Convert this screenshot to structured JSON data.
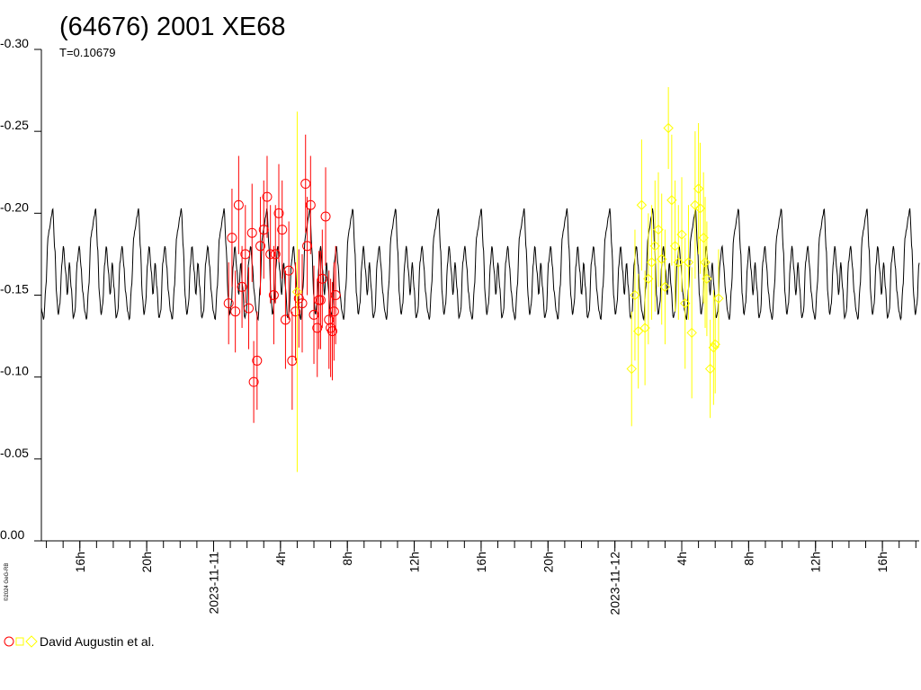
{
  "chart_data": {
    "type": "scatter",
    "title": "(64676) 2001 XE68",
    "subtitle": "T=0.10679",
    "credit": "©2024 GeG-RB",
    "y_reversed": true,
    "ylim": [
      0.0,
      -0.3
    ],
    "yticks": [
      "-0.30",
      "-0.25",
      "-0.20",
      "-0.15",
      "-0.10",
      "-0.05",
      "0.00"
    ],
    "ytick_values": [
      -0.3,
      -0.25,
      -0.2,
      -0.15,
      -0.1,
      -0.05,
      0.0
    ],
    "x_unit": "hours from 2023-11-10 00:00",
    "xlim": [
      13.7,
      66.2
    ],
    "xticks": [
      {
        "x": 16,
        "label": "16h"
      },
      {
        "x": 20,
        "label": "20h"
      },
      {
        "x": 24,
        "label": "2023-11-11"
      },
      {
        "x": 28,
        "label": "4h"
      },
      {
        "x": 32,
        "label": "8h"
      },
      {
        "x": 36,
        "label": "12h"
      },
      {
        "x": 40,
        "label": "16h"
      },
      {
        "x": 44,
        "label": "20h"
      },
      {
        "x": 48,
        "label": "2023-11-12"
      },
      {
        "x": 52,
        "label": "4h"
      },
      {
        "x": 56,
        "label": "8h"
      },
      {
        "x": 60,
        "label": "12h"
      },
      {
        "x": 64,
        "label": "16h"
      }
    ],
    "model": {
      "period_days": 0.10679,
      "mean": -0.168,
      "phase_points": [
        [
          0.0,
          -0.17
        ],
        [
          0.04,
          -0.155
        ],
        [
          0.09,
          -0.136
        ],
        [
          0.13,
          -0.14
        ],
        [
          0.18,
          -0.17
        ],
        [
          0.23,
          -0.18
        ],
        [
          0.27,
          -0.168
        ],
        [
          0.31,
          -0.152
        ],
        [
          0.36,
          -0.14
        ],
        [
          0.4,
          -0.135
        ],
        [
          0.45,
          -0.155
        ],
        [
          0.5,
          -0.185
        ],
        [
          0.53,
          -0.19
        ],
        [
          0.58,
          -0.198
        ],
        [
          0.61,
          -0.203
        ],
        [
          0.66,
          -0.178
        ],
        [
          0.7,
          -0.15
        ],
        [
          0.74,
          -0.138
        ],
        [
          0.78,
          -0.145
        ],
        [
          0.82,
          -0.168
        ],
        [
          0.86,
          -0.18
        ],
        [
          0.91,
          -0.165
        ],
        [
          0.95,
          -0.15
        ],
        [
          1.0,
          -0.17
        ]
      ],
      "color": "#000000"
    },
    "legend": {
      "label": "David Augustin et al.",
      "position": "bottom-left"
    },
    "series": [
      {
        "symbol": "circle",
        "color": "#ff0000",
        "points": [
          [
            24.9,
            -0.145,
            0.025
          ],
          [
            25.1,
            -0.185,
            0.03
          ],
          [
            25.3,
            -0.14,
            0.025
          ],
          [
            25.5,
            -0.205,
            0.03
          ],
          [
            25.7,
            -0.155,
            0.025
          ],
          [
            25.9,
            -0.175,
            0.03
          ],
          [
            26.1,
            -0.142,
            0.025
          ],
          [
            26.3,
            -0.188,
            0.03
          ],
          [
            26.4,
            -0.097,
            0.025
          ],
          [
            26.6,
            -0.11,
            0.03
          ],
          [
            26.8,
            -0.18,
            0.03
          ],
          [
            27.0,
            -0.19,
            0.03
          ],
          [
            27.2,
            -0.21,
            0.025
          ],
          [
            27.4,
            -0.175,
            0.03
          ],
          [
            27.6,
            -0.15,
            0.03
          ],
          [
            27.7,
            -0.175,
            0.03
          ],
          [
            27.9,
            -0.2,
            0.03
          ],
          [
            28.1,
            -0.19,
            0.03
          ],
          [
            28.3,
            -0.135,
            0.03
          ],
          [
            28.5,
            -0.165,
            0.03
          ],
          [
            28.7,
            -0.11,
            0.03
          ],
          [
            28.9,
            -0.14,
            0.03
          ],
          [
            29.1,
            -0.148,
            0.03
          ],
          [
            29.3,
            -0.145,
            0.03
          ],
          [
            29.5,
            -0.218,
            0.03
          ],
          [
            29.6,
            -0.18,
            0.03
          ],
          [
            29.8,
            -0.205,
            0.03
          ],
          [
            30.0,
            -0.138,
            0.03
          ],
          [
            30.2,
            -0.13,
            0.03
          ],
          [
            30.4,
            -0.147,
            0.03
          ],
          [
            30.5,
            -0.16,
            0.03
          ],
          [
            30.7,
            -0.198,
            0.03
          ],
          [
            30.9,
            -0.135,
            0.03
          ],
          [
            31.0,
            -0.13,
            0.03
          ],
          [
            31.2,
            -0.14,
            0.03
          ],
          [
            31.3,
            -0.15,
            0.03
          ],
          [
            31.1,
            -0.128,
            0.03
          ],
          [
            30.3,
            -0.147,
            0.03
          ]
        ]
      },
      {
        "symbol": "diamond",
        "color": "#ffff00",
        "points": [
          [
            29.0,
            -0.152,
            0.11
          ],
          [
            49.0,
            -0.105,
            0.035
          ],
          [
            49.2,
            -0.15,
            0.04
          ],
          [
            49.4,
            -0.128,
            0.035
          ],
          [
            49.6,
            -0.205,
            0.04
          ],
          [
            49.8,
            -0.13,
            0.035
          ],
          [
            50.0,
            -0.16,
            0.04
          ],
          [
            50.2,
            -0.17,
            0.035
          ],
          [
            50.4,
            -0.18,
            0.04
          ],
          [
            50.6,
            -0.19,
            0.035
          ],
          [
            50.8,
            -0.172,
            0.04
          ],
          [
            51.0,
            -0.155,
            0.035
          ],
          [
            51.2,
            -0.252,
            0.025
          ],
          [
            51.4,
            -0.208,
            0.04
          ],
          [
            51.6,
            -0.18,
            0.04
          ],
          [
            51.8,
            -0.17,
            0.035
          ],
          [
            52.0,
            -0.187,
            0.035
          ],
          [
            52.2,
            -0.145,
            0.04
          ],
          [
            52.4,
            -0.17,
            0.035
          ],
          [
            52.6,
            -0.127,
            0.04
          ],
          [
            52.8,
            -0.205,
            0.045
          ],
          [
            53.0,
            -0.215,
            0.04
          ],
          [
            53.1,
            -0.203,
            0.04
          ],
          [
            53.3,
            -0.185,
            0.04
          ],
          [
            53.5,
            -0.16,
            0.035
          ],
          [
            53.7,
            -0.105,
            0.03
          ],
          [
            53.9,
            -0.118,
            0.035
          ],
          [
            54.0,
            -0.12,
            0.03
          ],
          [
            54.2,
            -0.148,
            0.03
          ],
          [
            53.4,
            -0.17,
            0.04
          ]
        ]
      }
    ]
  }
}
